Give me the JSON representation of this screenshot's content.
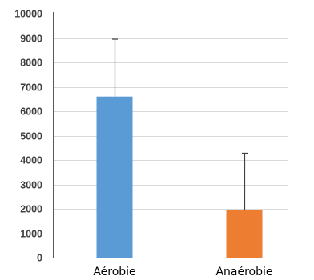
{
  "chart_data": {
    "type": "bar",
    "title": "",
    "xlabel": "",
    "ylabel": "",
    "categories": [
      "Aérobie",
      "Anaérobie"
    ],
    "values": [
      6600,
      1950
    ],
    "error_plus": [
      2350,
      2330
    ],
    "colors": [
      "#5b9bd5",
      "#ed7d31"
    ],
    "ylim": [
      0,
      10000
    ],
    "yticks": [
      0,
      1000,
      2000,
      3000,
      4000,
      5000,
      6000,
      7000,
      8000,
      9000,
      10000
    ],
    "grid": true,
    "legend": "none"
  }
}
